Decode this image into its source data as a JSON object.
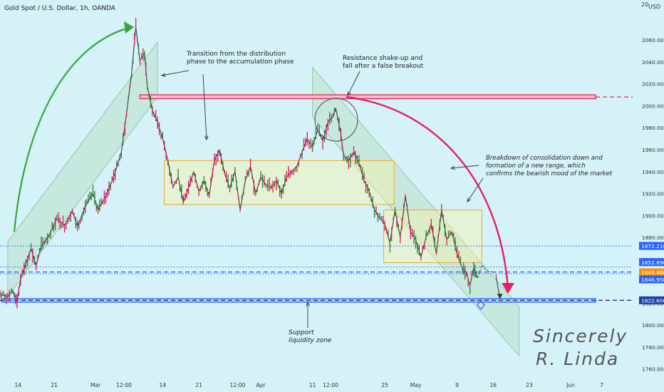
{
  "header": {
    "symbol": "Gold Spot / U.S. Dollar, 1h, OANDA",
    "currency": "USD",
    "corner": "20"
  },
  "colors": {
    "background": "#d4f2f7",
    "bull": "#2e7d32",
    "bear": "#d81b60",
    "resistance": "#e0305a",
    "support": "#2962ff",
    "range_box": "#f5a623",
    "channel": "#b9dcc0",
    "green_arrow": "#3aa63a",
    "red_arrow": "#e91e63"
  },
  "chart_data": {
    "type": "candlestick",
    "instrument": "XAUUSD",
    "timeframe": "1h",
    "ylim": [
      1752,
      2090
    ],
    "y_ticks": [
      1760,
      1780,
      1800,
      1820,
      1840,
      1860,
      1880,
      1900,
      1920,
      1940,
      1960,
      1980,
      2000,
      2020,
      2040,
      2060
    ],
    "x_ticks": [
      {
        "t": 14,
        "label": "14"
      },
      {
        "t": 21,
        "label": "21"
      },
      {
        "t": 29,
        "label": "Mar"
      },
      {
        "t": 34.5,
        "label": "12:00"
      },
      {
        "t": 42,
        "label": "14"
      },
      {
        "t": 49,
        "label": "21"
      },
      {
        "t": 56.5,
        "label": "12:00"
      },
      {
        "t": 61,
        "label": "Apr"
      },
      {
        "t": 71,
        "label": "11"
      },
      {
        "t": 74.5,
        "label": "12:00"
      },
      {
        "t": 85,
        "label": "25"
      },
      {
        "t": 91,
        "label": "May"
      },
      {
        "t": 99,
        "label": "9"
      },
      {
        "t": 106,
        "label": "16"
      },
      {
        "t": 113,
        "label": "23"
      },
      {
        "t": 121,
        "label": "Jun"
      },
      {
        "t": 127,
        "label": "7"
      }
    ],
    "price_path": [
      [
        10.5,
        1828
      ],
      [
        12,
        1826
      ],
      [
        13,
        1831
      ],
      [
        13.8,
        1822
      ],
      [
        14.5,
        1842
      ],
      [
        15.5,
        1856
      ],
      [
        16.5,
        1870
      ],
      [
        17.5,
        1854
      ],
      [
        18.5,
        1872
      ],
      [
        20,
        1882
      ],
      [
        21.5,
        1897
      ],
      [
        23,
        1891
      ],
      [
        24.5,
        1904
      ],
      [
        25.5,
        1890
      ],
      [
        27,
        1908
      ],
      [
        28.5,
        1920
      ],
      [
        29.5,
        1905
      ],
      [
        31,
        1918
      ],
      [
        32.5,
        1935
      ],
      [
        34,
        1958
      ],
      [
        35,
        1993
      ],
      [
        36,
        2030
      ],
      [
        36.8,
        2072
      ],
      [
        37.6,
        2041
      ],
      [
        38.5,
        2048
      ],
      [
        39,
        2018
      ],
      [
        40,
        1996
      ],
      [
        41,
        1985
      ],
      [
        42,
        1970
      ],
      [
        43,
        1950
      ],
      [
        44,
        1926
      ],
      [
        45,
        1935
      ],
      [
        46,
        1912
      ],
      [
        47,
        1925
      ],
      [
        48,
        1940
      ],
      [
        49,
        1922
      ],
      [
        50,
        1932
      ],
      [
        51,
        1918
      ],
      [
        52,
        1950
      ],
      [
        53,
        1960
      ],
      [
        54,
        1938
      ],
      [
        55,
        1925
      ],
      [
        56,
        1940
      ],
      [
        57,
        1905
      ],
      [
        58,
        1932
      ],
      [
        59,
        1945
      ],
      [
        60,
        1920
      ],
      [
        61,
        1935
      ],
      [
        62,
        1928
      ],
      [
        63,
        1925
      ],
      [
        64,
        1932
      ],
      [
        65,
        1920
      ],
      [
        66,
        1935
      ],
      [
        67,
        1940
      ],
      [
        68,
        1945
      ],
      [
        69,
        1958
      ],
      [
        70,
        1970
      ],
      [
        71,
        1962
      ],
      [
        72,
        1978
      ],
      [
        73,
        1968
      ],
      [
        74,
        1985
      ],
      [
        75,
        1990
      ],
      [
        75.5,
        1998
      ],
      [
        76.5,
        1975
      ],
      [
        77,
        1955
      ],
      [
        78,
        1950
      ],
      [
        79,
        1958
      ],
      [
        80,
        1948
      ],
      [
        81,
        1932
      ],
      [
        82,
        1922
      ],
      [
        83,
        1905
      ],
      [
        84,
        1898
      ],
      [
        85,
        1892
      ],
      [
        86,
        1875
      ],
      [
        87,
        1905
      ],
      [
        88,
        1880
      ],
      [
        89,
        1918
      ],
      [
        90,
        1885
      ],
      [
        91,
        1878
      ],
      [
        92,
        1862
      ],
      [
        93,
        1880
      ],
      [
        94,
        1892
      ],
      [
        95,
        1865
      ],
      [
        96,
        1905
      ],
      [
        97,
        1878
      ],
      [
        98,
        1885
      ],
      [
        99,
        1865
      ],
      [
        100,
        1852
      ],
      [
        100.8,
        1848
      ],
      [
        101.5,
        1836
      ],
      [
        102.2,
        1852
      ],
      [
        103,
        1843
      ]
    ],
    "continuation_path": [
      [
        103,
        1843
      ],
      [
        103.8,
        1855
      ],
      [
        104.5,
        1851
      ],
      [
        105.2,
        1849
      ],
      [
        106.5,
        1848
      ]
    ],
    "breakdown_arrow": [
      [
        106.5,
        1846
      ],
      [
        107.3,
        1824
      ]
    ],
    "levels": [
      {
        "price": 2008.0,
        "style": "dashed",
        "color": "#e0305a"
      },
      {
        "price": 1872.21,
        "label": "1872.210",
        "style": "dotted",
        "color": "#2962ff"
      },
      {
        "price": 1852.89,
        "label": "1852.890",
        "style": "dotted",
        "color": "#2962ff"
      },
      {
        "price": 1848.46,
        "label": "1848.460",
        "style": "dashed",
        "color": "#2962ff"
      },
      {
        "price": 1846.95,
        "label": "1846.950",
        "style": "dotted",
        "color": "#2962ff"
      },
      {
        "price": 1822.6,
        "label": "1822.600",
        "style": "dashed",
        "color": "#1a237e"
      }
    ],
    "resistance_zone": {
      "t_start": 37.6,
      "t_end": 133,
      "price_low": 2006.5,
      "price_high": 2010
    },
    "support_zone": {
      "t_start": 10.8,
      "t_end": 133,
      "price_low": 1821,
      "price_high": 1824
    },
    "ranges": [
      {
        "t_start": 42.3,
        "t_end": 86.8,
        "price_low": 1910,
        "price_high": 1950
      },
      {
        "t_start": 84.8,
        "t_end": 103.8,
        "price_low": 1857,
        "price_high": 1905
      }
    ],
    "channels": [
      {
        "p1": [
          12,
          1826
        ],
        "p2": [
          41,
          2008
        ],
        "offset": 50
      },
      {
        "p1": [
          71,
          1990
        ],
        "p2": [
          111,
          1772
        ],
        "offset": 45
      }
    ],
    "annotations": [
      {
        "id": "transition",
        "lines": [
          "Transition from the distribution",
          "phase to the accumulation phase"
        ]
      },
      {
        "id": "shakeup",
        "lines": [
          "Resistance shake-up and",
          "fall after a false breakout"
        ]
      },
      {
        "id": "breakdown",
        "lines": [
          "Breakdown of consolidation down and",
          "formation of a new range, which",
          "confirms the bearish mood of the market"
        ]
      },
      {
        "id": "support",
        "lines": [
          "Support",
          "liquidity zone"
        ]
      }
    ]
  },
  "signature": {
    "line1": "Sincerely",
    "line2": "R. Linda"
  }
}
